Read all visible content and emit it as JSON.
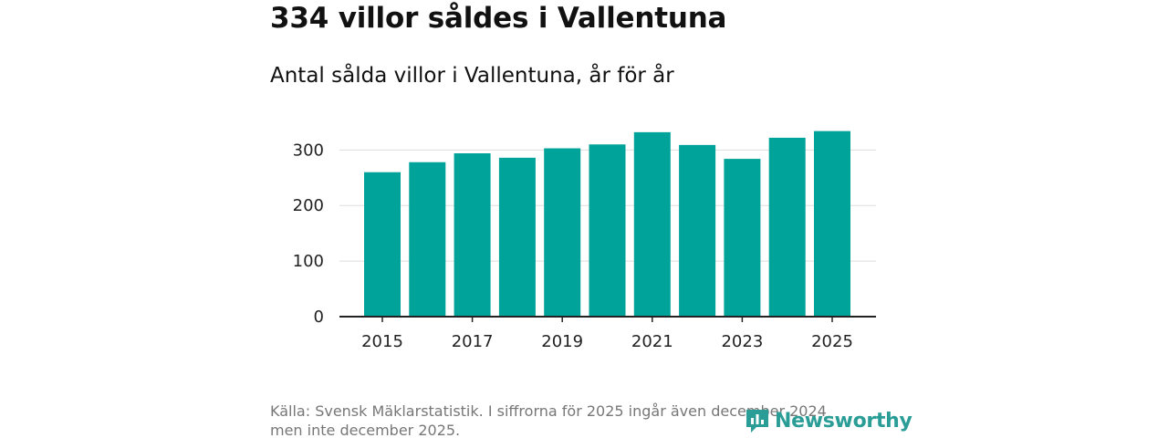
{
  "title": "334 villor såldes i Vallentuna",
  "subtitle": "Antal sålda villor i Vallentuna, år för år",
  "source_line1": "Källa: Svensk Mäklarstatistik. I siffrorna för 2025 ingår även december 2024",
  "source_line2": "men inte december 2025.",
  "logo_text": "Newsworthy",
  "colors": {
    "bar": "#00a39a",
    "grid": "#dddddd",
    "axis": "#222222",
    "logo": "#2a9d96"
  },
  "chart_data": {
    "type": "bar",
    "title": "334 villor såldes i Vallentuna",
    "subtitle": "Antal sålda villor i Vallentuna, år för år",
    "xlabel": "",
    "ylabel": "",
    "categories": [
      "2015",
      "2016",
      "2017",
      "2018",
      "2019",
      "2020",
      "2021",
      "2022",
      "2023",
      "2024",
      "2025"
    ],
    "values": [
      260,
      278,
      294,
      286,
      303,
      310,
      332,
      309,
      284,
      322,
      334
    ],
    "ylim": [
      0,
      340
    ],
    "yticks": [
      0,
      100,
      200,
      300
    ],
    "xtick_labels": [
      "2015",
      "2017",
      "2019",
      "2021",
      "2023",
      "2025"
    ],
    "grid": true,
    "legend": "none"
  }
}
